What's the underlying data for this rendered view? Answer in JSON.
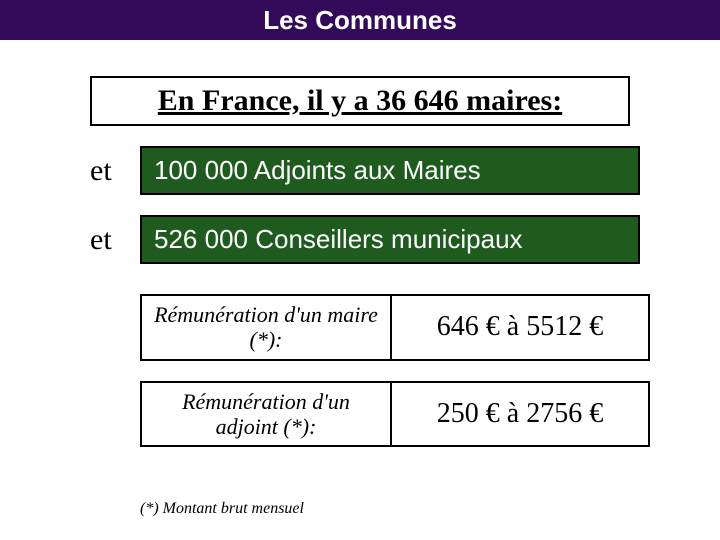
{
  "header": {
    "title": "Les Communes",
    "bg_color": "#330a5a",
    "text_color": "#ffffff",
    "title_fontsize": 26
  },
  "main_heading": {
    "text": "En France, il y a 36 646 maires:",
    "fontsize": 30,
    "font_family": "Times New Roman",
    "underline": true,
    "border_color": "#000000"
  },
  "rows": [
    {
      "prefix": "et",
      "text": "100 000 Adjoints aux Maires"
    },
    {
      "prefix": "et",
      "text": "526 000 Conseillers municipaux"
    }
  ],
  "green_box_style": {
    "bg_color": "#1f5b1f",
    "text_color": "#ffffff",
    "fontsize": 26
  },
  "remuneration": [
    {
      "label": "Rémunération d'un maire (*):",
      "value": "646 € à 5512 €"
    },
    {
      "label": "Rémunération d'un adjoint (*):",
      "value": "250 € à 2756 €"
    }
  ],
  "remu_style": {
    "label_fontsize": 22,
    "value_fontsize": 28,
    "label_font_family": "Times New Roman",
    "value_font_family": "Times New Roman"
  },
  "footnote": "(*) Montant brut mensuel"
}
